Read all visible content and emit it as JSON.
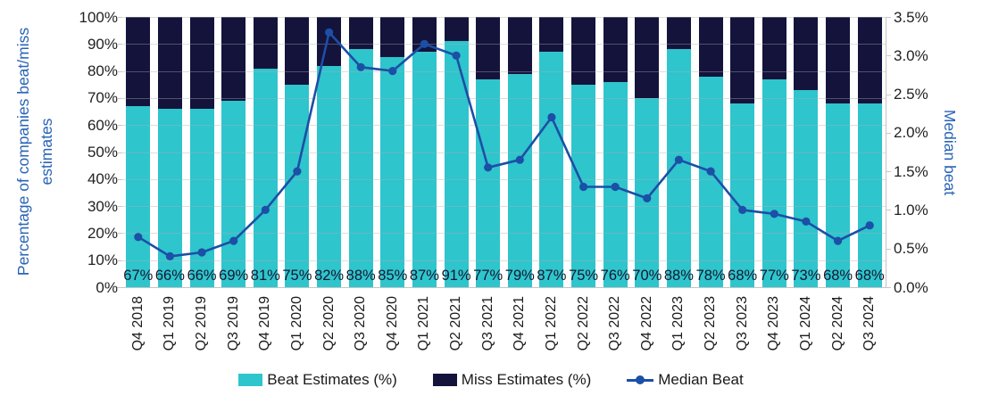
{
  "chart_data": {
    "type": "bar",
    "subtype": "stacked-bar-with-line",
    "categories": [
      "Q4 2018",
      "Q1 2019",
      "Q2 2019",
      "Q3 2019",
      "Q4 2019",
      "Q1 2020",
      "Q2 2020",
      "Q3 2020",
      "Q4 2020",
      "Q1 2021",
      "Q2 2021",
      "Q3 2021",
      "Q4 2021",
      "Q1 2022",
      "Q2 2022",
      "Q3 2022",
      "Q4 2022",
      "Q1 2023",
      "Q2 2023",
      "Q3 2023",
      "Q4 2023",
      "Q1 2024",
      "Q2 2024",
      "Q3 2024"
    ],
    "series": [
      {
        "name": "Beat Estimates (%)",
        "type": "bar",
        "axis": "left",
        "color": "#2EC5CD",
        "values": [
          67,
          66,
          66,
          69,
          81,
          75,
          82,
          88,
          85,
          87,
          91,
          77,
          79,
          87,
          75,
          76,
          70,
          88,
          78,
          68,
          77,
          73,
          68,
          68
        ]
      },
      {
        "name": "Miss Estimates (%)",
        "type": "bar",
        "axis": "left",
        "color": "#13133C",
        "values": [
          33,
          34,
          34,
          31,
          19,
          25,
          18,
          12,
          15,
          13,
          9,
          23,
          21,
          13,
          25,
          24,
          30,
          12,
          22,
          32,
          23,
          27,
          32,
          32
        ]
      },
      {
        "name": "Median Beat",
        "type": "line",
        "axis": "right",
        "color": "#1C4FA6",
        "values": [
          0.65,
          0.4,
          0.45,
          0.6,
          1.0,
          1.5,
          3.3,
          2.85,
          2.8,
          3.15,
          3.0,
          1.55,
          1.65,
          2.2,
          1.3,
          1.3,
          1.15,
          1.65,
          1.5,
          1.0,
          0.95,
          0.85,
          0.6,
          0.8
        ]
      }
    ],
    "bar_labels": [
      "67%",
      "66%",
      "66%",
      "69%",
      "81%",
      "75%",
      "82%",
      "88%",
      "85%",
      "87%",
      "91%",
      "77%",
      "79%",
      "87%",
      "75%",
      "76%",
      "70%",
      "88%",
      "78%",
      "68%",
      "77%",
      "73%",
      "68%",
      "68%"
    ],
    "left_axis": {
      "label": "Percentage of companies beat/miss estimates",
      "min": 0,
      "max": 100,
      "tick_labels": [
        "0%",
        "10%",
        "20%",
        "30%",
        "40%",
        "50%",
        "60%",
        "70%",
        "80%",
        "90%",
        "100%"
      ]
    },
    "right_axis": {
      "label": "Median beat",
      "min": 0,
      "max": 3.5,
      "tick_labels": [
        "0.0%",
        "0.5%",
        "1.0%",
        "1.5%",
        "2.0%",
        "2.5%",
        "3.0%",
        "3.5%"
      ]
    },
    "grid": "horizontal",
    "legend_position": "bottom",
    "legend": [
      {
        "label": "Beat Estimates (%)",
        "marker": "square",
        "color": "#2EC5CD"
      },
      {
        "label": "Miss Estimates (%)",
        "marker": "square",
        "color": "#13133C"
      },
      {
        "label": "Median Beat",
        "marker": "line-dot",
        "color": "#1C4FA6"
      }
    ],
    "colors": {
      "grid": "#AFAFAF",
      "axis_line": "#C4C4C4",
      "tick_text": "#222222",
      "bar_label_text": "#16162E",
      "axis_title_text": "#2A64B6"
    }
  }
}
